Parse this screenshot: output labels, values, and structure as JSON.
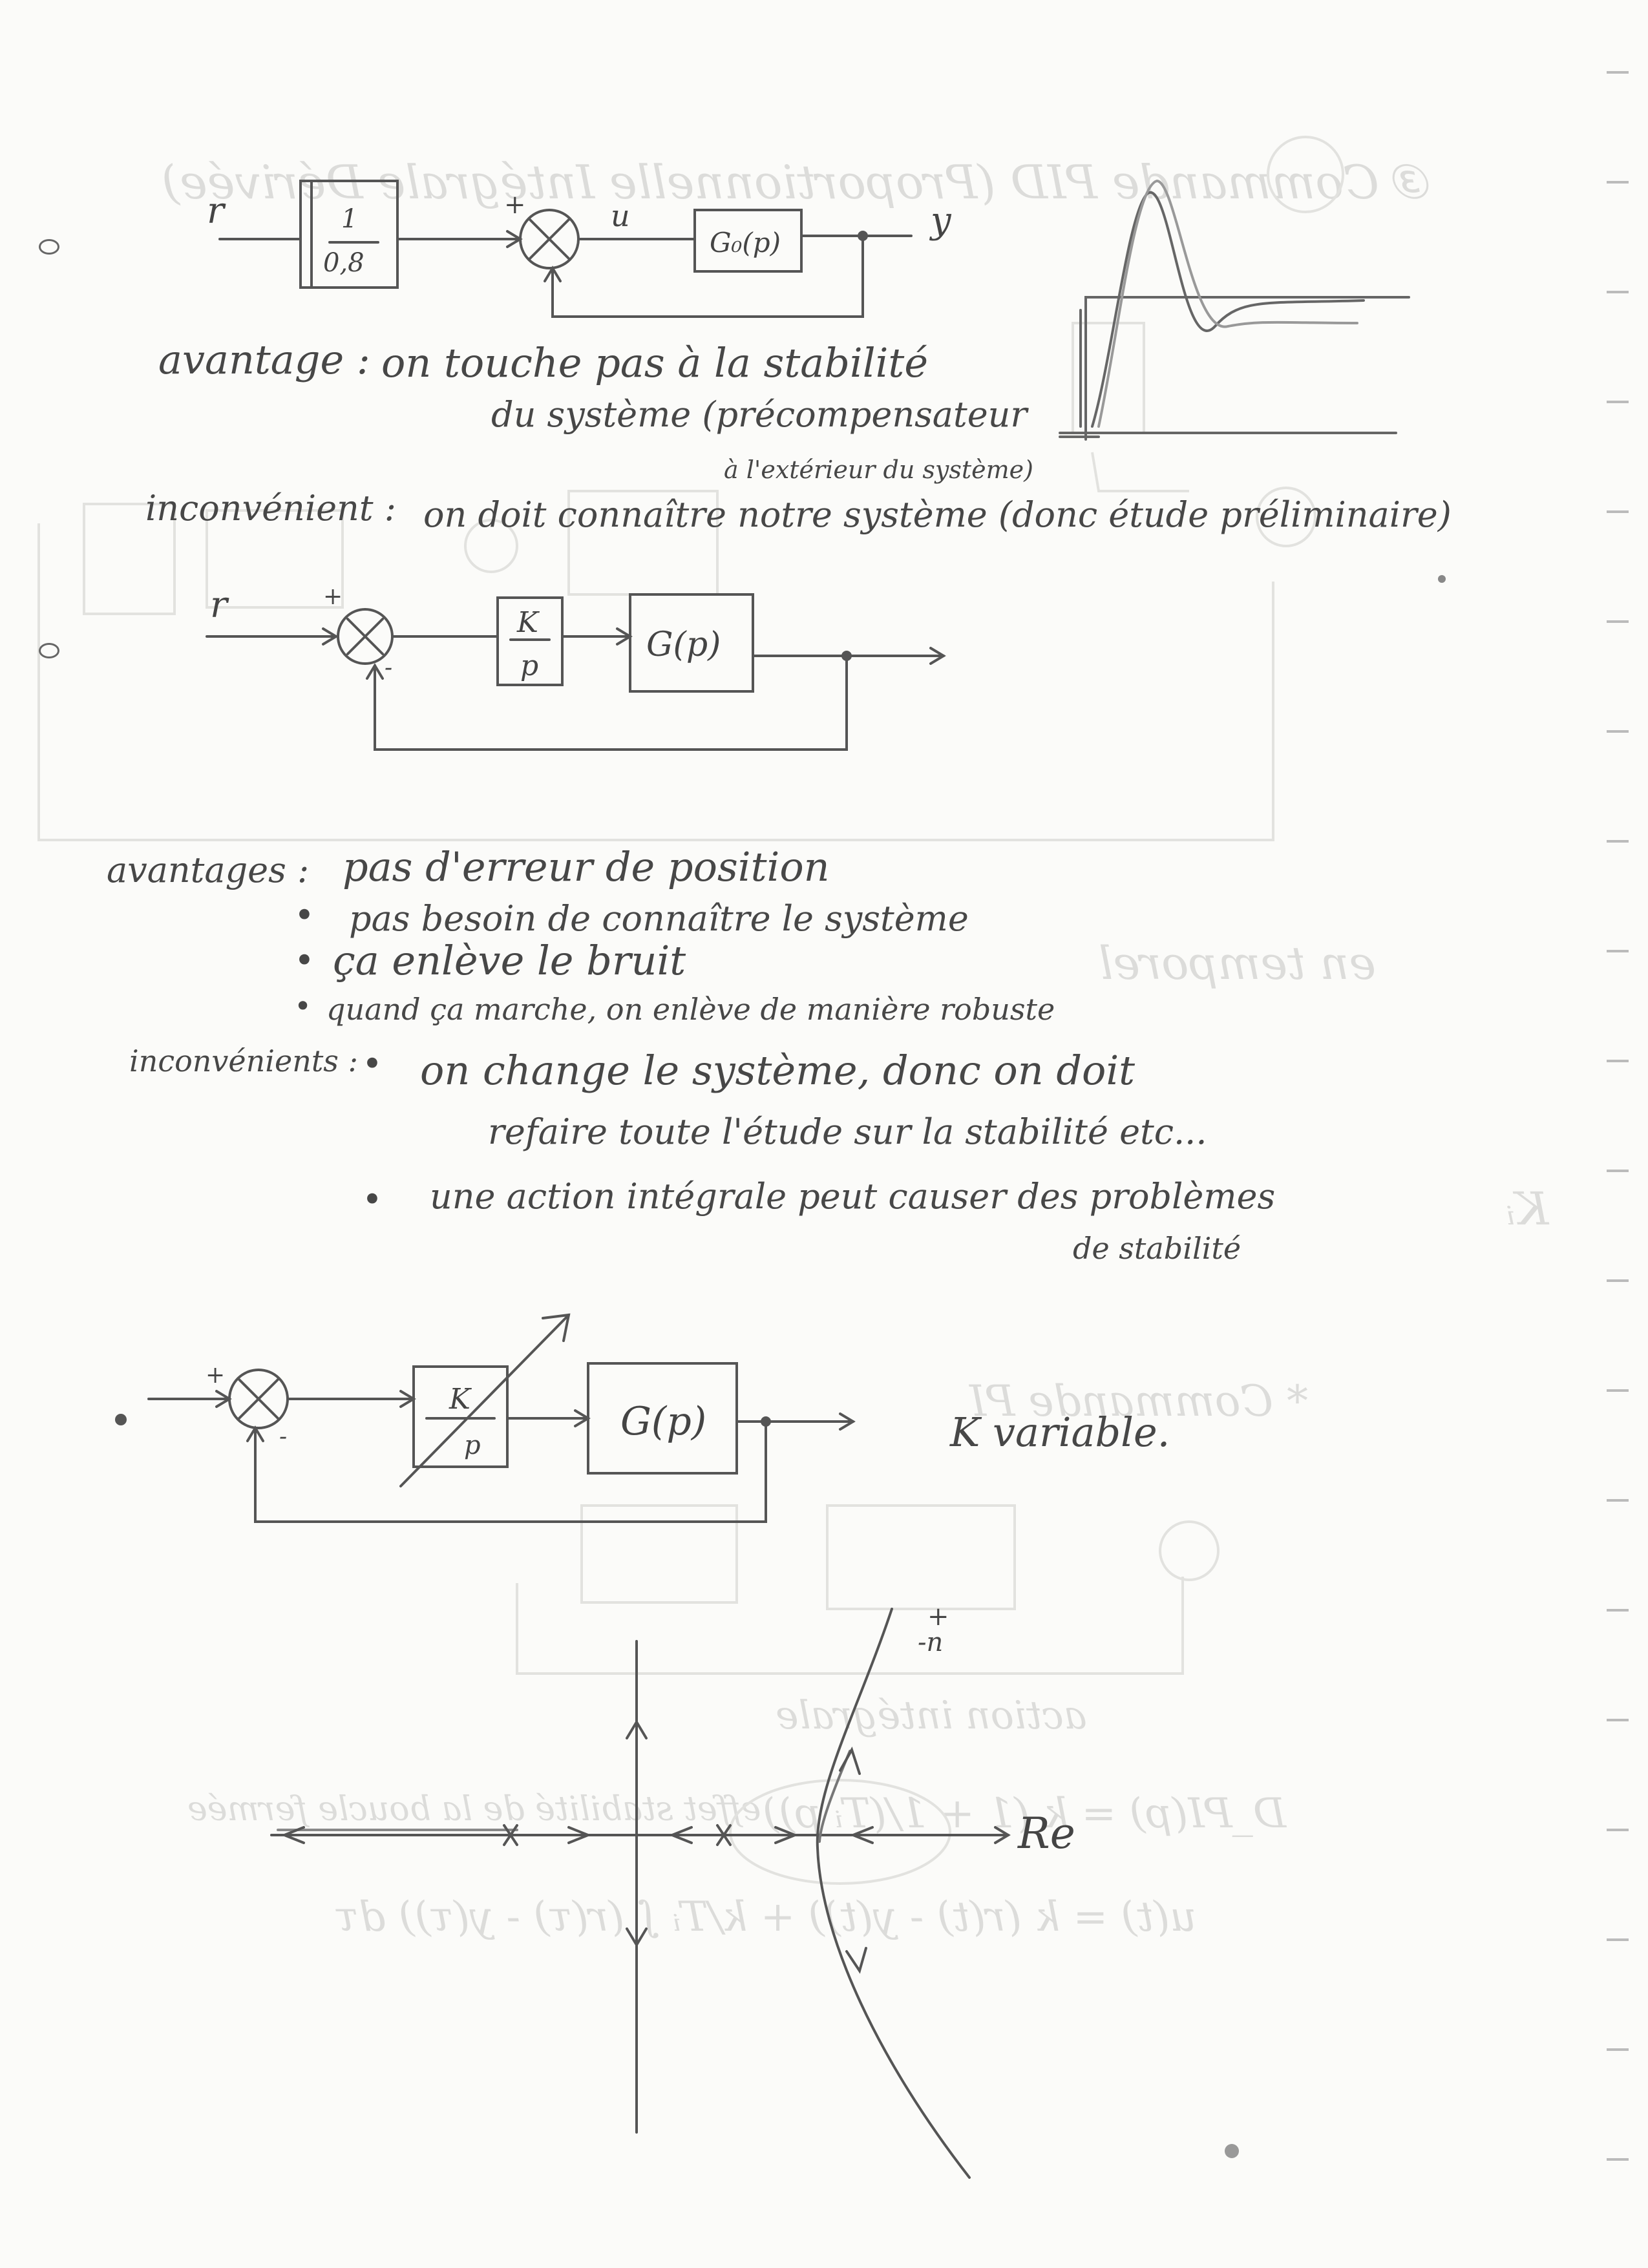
{
  "diagram1": {
    "input_label": "r",
    "gain_num": "1",
    "gain_den": "0,8",
    "plus_sign": "+",
    "signal_label": "u",
    "plant_label": "G₀(p)",
    "output_label": "y"
  },
  "notes1": {
    "advantage_label": "avantage :",
    "advantage_line1": "on touche pas à la stabilité",
    "advantage_line2": "du système (précompensateur",
    "advantage_line3": "à l'extérieur du système)",
    "drawback_label": "inconvénient :",
    "drawback_text": "on doit connaître notre système (donc étude préliminaire)"
  },
  "diagram2": {
    "input_label": "r",
    "plus_sign": "+",
    "minus_sign": "-",
    "controller_num": "K",
    "controller_den": "p",
    "plant_label": "G(p)"
  },
  "notes2": {
    "advantages_label": "avantages :",
    "advantages": [
      "pas d'erreur de position",
      "pas besoin de connaître le système",
      "ça enlève le bruit",
      "quand ça marche, on enlève de manière robuste"
    ],
    "drawbacks_label": "inconvénients :",
    "drawbacks": [
      "on change le système, donc on doit",
      "refaire toute l'étude sur la stabilité etc...",
      "une action intégrale peut causer des problèmes",
      "de stabilité"
    ]
  },
  "diagram3": {
    "plus_sign": "+",
    "minus_sign": "-",
    "controller_num": "K",
    "controller_den": "p",
    "plant_label": "G(p)",
    "note": "K variable."
  },
  "root_locus": {
    "axis_label": "Re",
    "sign_label": "+\n-n"
  },
  "bleed_through": {
    "title": "③ Commande PID (Proportionnelle Intégrale Dérivée)",
    "temporal": "en temporel",
    "ki": "Kᵢ",
    "pi": "* Commande PI",
    "action": "action intégrale",
    "dpi": "D_PI(p) = k (1 + 1/(Tᵢ p))",
    "effect": "effet stabilité de la boucle fermée",
    "law": "u(t) = k (r(t) - y(t)) + k/Tᵢ ∫ (r(τ) - y(τ)) dτ"
  }
}
